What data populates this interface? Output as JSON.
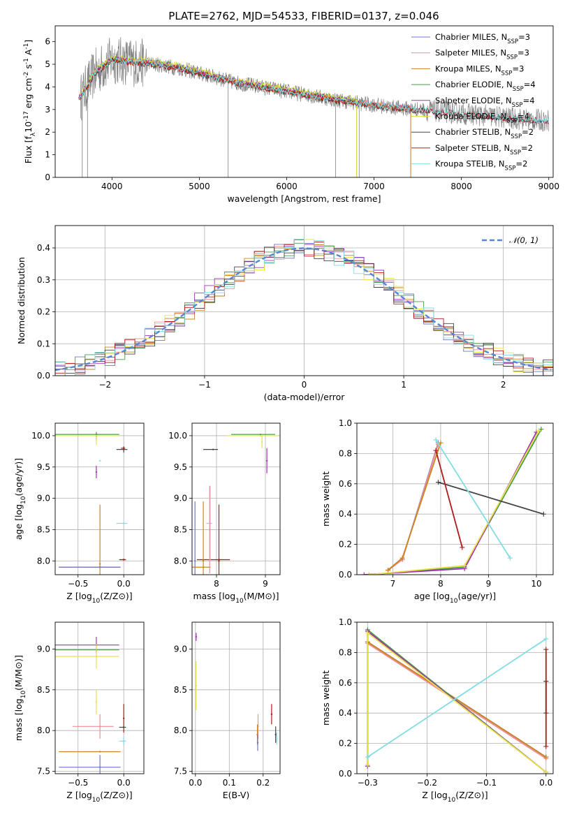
{
  "figure": {
    "title": "PLATE=2762, MJD=54533, FIBERID=0137, z=0.046"
  },
  "model_colors": [
    "#6f76c9",
    "#f28b96",
    "#c8861c",
    "#4a9b4a",
    "#a234b4",
    "#e8e24a",
    "#444444",
    "#b11a1a",
    "#82dde3"
  ],
  "chart_data": [
    {
      "id": "spectrum",
      "type": "line",
      "xlabel": "wavelength [Angstrom, rest frame]",
      "ylabel": "Flux [f_λ10^-17 erg cm^-2 s^-1 A^-1]",
      "xlim": [
        3350,
        9050
      ],
      "ylim": [
        0,
        6.7
      ],
      "xticks": [
        4000,
        5000,
        6000,
        7000,
        8000,
        9000
      ],
      "yticks": [
        0,
        1,
        2,
        3,
        4,
        5,
        6
      ],
      "grid": false,
      "legend_position": "top-right",
      "data_color": "#808080",
      "data_envelope": {
        "wavelength": [
          3640,
          3800,
          4000,
          4200,
          4500,
          4800,
          5100,
          5400,
          5700,
          6000,
          6300,
          6600,
          6900,
          7200,
          7500,
          7800,
          8200,
          8600,
          9000
        ],
        "flux": [
          3.5,
          4.6,
          5.2,
          5.1,
          5.0,
          4.8,
          4.5,
          4.2,
          4.0,
          3.8,
          3.6,
          3.4,
          3.25,
          3.1,
          3.0,
          2.9,
          2.75,
          2.6,
          2.5
        ]
      },
      "series": [
        {
          "name": "Chabrier MILES",
          "nssp": "3",
          "max_wavelength": 7420,
          "offset": 0.05
        },
        {
          "name": "Salpeter MILES",
          "nssp": "3",
          "max_wavelength": 7420,
          "offset": 0.03
        },
        {
          "name": "Kroupa MILES",
          "nssp": "3",
          "max_wavelength": 7420,
          "offset": 0.0
        },
        {
          "name": "Chabrier ELODIE",
          "nssp": "4",
          "max_wavelength": 6800,
          "offset": 0.08
        },
        {
          "name": "Salpeter ELODIE",
          "nssp": "4",
          "max_wavelength": 6800,
          "offset": 0.06
        },
        {
          "name": "Kroupa ELODIE",
          "nssp": "4",
          "max_wavelength": 6800,
          "offset": 0.12
        },
        {
          "name": "Chabrier STELIB",
          "nssp": "2",
          "max_wavelength": 9000,
          "offset": -0.04
        },
        {
          "name": "Salpeter STELIB",
          "nssp": "2",
          "max_wavelength": 9000,
          "offset": -0.02
        },
        {
          "name": "Kroupa STELIB",
          "nssp": "2",
          "max_wavelength": 9000,
          "offset": 0.0
        }
      ]
    },
    {
      "id": "residuals",
      "type": "line",
      "xlabel": "(data-model)/error",
      "ylabel": "Normed distribution",
      "xlim": [
        -2.5,
        2.5
      ],
      "ylim": [
        0,
        0.47
      ],
      "xticks": [
        -2,
        -1,
        0,
        1,
        2
      ],
      "yticks": [
        0.0,
        0.1,
        0.2,
        0.3,
        0.4
      ],
      "grid": true,
      "legend_position": "top-right",
      "legend": "𝒩(0, 1)",
      "normal_curve": {
        "mean": 0,
        "sigma": 1,
        "color": "#5b84d4"
      },
      "histogram_bin_width": 0.1,
      "histogram_noise": 0.03
    },
    {
      "id": "age-vs-Z",
      "type": "scatter",
      "xlabel": "Z [log10(Z/Z⊙)]",
      "ylabel": "age  [log10(age/yr)]",
      "xlim": [
        -0.75,
        0.22
      ],
      "ylim": [
        7.78,
        10.2
      ],
      "xticks": [
        -0.5,
        0.0
      ],
      "yticks": [
        8.0,
        8.5,
        9.0,
        9.5,
        10.0
      ],
      "grid": true,
      "error_crosses": [
        {
          "model": 6,
          "x": 0.0,
          "y": 8.02,
          "dx": 0.05,
          "dy": 0.0
        },
        {
          "model": 7,
          "x": 0.0,
          "y": 8.02,
          "dx": 0.04,
          "dy": 0.0
        },
        {
          "model": 8,
          "x": 0.0,
          "y": 8.6,
          "dx": 0.08,
          "dy": 0.0
        },
        {
          "model": 6,
          "x": 0.0,
          "y": 9.78,
          "dx": 0.08,
          "dy": 0.1
        },
        {
          "model": 7,
          "x": 0.0,
          "y": 9.8,
          "dx": 0.03,
          "dy": 0.0
        },
        {
          "model": 2,
          "x": -0.26,
          "y": 7.9,
          "dx": 0.45,
          "dy": 0.0
        },
        {
          "model": 2,
          "x": -0.26,
          "y": 7.95,
          "dx": 0.0,
          "dy": 1.9
        },
        {
          "model": 8,
          "x": -0.26,
          "y": 9.6,
          "dx": 0.0,
          "dy": 0.0
        },
        {
          "model": 4,
          "x": -0.3,
          "y": 9.42,
          "dx": 0.0,
          "dy": 0.2
        },
        {
          "model": 5,
          "x": -0.3,
          "y": 9.95,
          "dx": 0.0,
          "dy": 0.2
        },
        {
          "model": 3,
          "x": -0.3,
          "y": 10.02,
          "dx": 0.5,
          "dy": 0.08
        },
        {
          "model": 5,
          "x": -0.3,
          "y": 10.0,
          "dx": 0.5,
          "dy": 0.0
        },
        {
          "model": 0,
          "x": -0.26,
          "y": 7.9,
          "dx": 0.45,
          "dy": 0.0
        }
      ]
    },
    {
      "id": "age-vs-mass",
      "type": "scatter",
      "xlabel": "mass [log10(M/M⊙)]",
      "ylabel": "",
      "xlim": [
        7.5,
        9.3
      ],
      "ylim": [
        7.78,
        10.2
      ],
      "xticks": [
        8,
        9
      ],
      "yticks": [
        8.0,
        8.5,
        9.0,
        9.5,
        10.0
      ],
      "grid": true,
      "error_crosses": [
        {
          "model": 7,
          "x": 8.05,
          "y": 8.02,
          "dx": 0.45,
          "dy": 0.0
        },
        {
          "model": 7,
          "x": 8.05,
          "y": 8.0,
          "dx": 0.0,
          "dy": 1.8
        },
        {
          "model": 6,
          "x": 7.93,
          "y": 9.78,
          "dx": 0.2,
          "dy": 0.0
        },
        {
          "model": 2,
          "x": 7.73,
          "y": 8.0,
          "dx": 0.0,
          "dy": 1.9
        },
        {
          "model": 2,
          "x": 7.73,
          "y": 7.9,
          "dx": 0.3,
          "dy": 0.0
        },
        {
          "model": 8,
          "x": 7.87,
          "y": 8.6,
          "dx": 0.08,
          "dy": 1.2
        },
        {
          "model": 1,
          "x": 7.86,
          "y": 8.5,
          "dx": 0.0,
          "dy": 1.4
        },
        {
          "model": 0,
          "x": 7.56,
          "y": 8.0,
          "dx": 0.0,
          "dy": 1.9
        },
        {
          "model": 4,
          "x": 9.03,
          "y": 9.6,
          "dx": 0.0,
          "dy": 0.4
        },
        {
          "model": 5,
          "x": 8.93,
          "y": 9.9,
          "dx": 0.0,
          "dy": 0.2
        },
        {
          "model": 3,
          "x": 8.9,
          "y": 10.02,
          "dx": 0.6,
          "dy": 0.0
        },
        {
          "model": 5,
          "x": 8.9,
          "y": 10.0,
          "dx": 0.7,
          "dy": 0.0
        }
      ]
    },
    {
      "id": "mass-weight-vs-age",
      "type": "line",
      "xlabel": "age  [log10(age/yr)]",
      "ylabel": "mass weight",
      "xlim": [
        6.25,
        10.35
      ],
      "ylim": [
        0,
        1
      ],
      "xticks": [
        7,
        8,
        9,
        10
      ],
      "yticks": [
        0.0,
        0.2,
        0.4,
        0.6,
        0.8,
        1.0
      ],
      "grid": true,
      "series": [
        {
          "model": 0,
          "x": [
            6.9,
            7.2,
            7.95
          ],
          "y": [
            0.03,
            0.1,
            0.87
          ]
        },
        {
          "model": 1,
          "x": [
            6.9,
            7.2,
            7.95
          ],
          "y": [
            0.03,
            0.1,
            0.86
          ]
        },
        {
          "model": 2,
          "x": [
            6.9,
            7.2,
            8.0
          ],
          "y": [
            0.03,
            0.11,
            0.87
          ]
        },
        {
          "model": 3,
          "x": [
            6.5,
            8.5,
            10.1
          ],
          "y": [
            0.0,
            0.05,
            0.96
          ]
        },
        {
          "model": 4,
          "x": [
            6.4,
            8.5,
            10.0
          ],
          "y": [
            0.0,
            0.04,
            0.94
          ]
        },
        {
          "model": 5,
          "x": [
            6.5,
            8.5,
            10.05
          ],
          "y": [
            0.0,
            0.06,
            0.95
          ]
        },
        {
          "model": 6,
          "x": [
            7.95,
            10.15
          ],
          "y": [
            0.61,
            0.4
          ]
        },
        {
          "model": 7,
          "x": [
            7.9,
            8.45
          ],
          "y": [
            0.82,
            0.18
          ]
        },
        {
          "model": 8,
          "x": [
            7.9,
            9.45
          ],
          "y": [
            0.89,
            0.11
          ]
        }
      ]
    },
    {
      "id": "mass-vs-Z",
      "type": "scatter",
      "xlabel": "Z [log10(Z/Z⊙)]",
      "ylabel": "mass [log10(M/M⊙)]",
      "xlim": [
        -0.75,
        0.22
      ],
      "ylim": [
        7.47,
        9.33
      ],
      "xticks": [
        -0.5,
        0.0
      ],
      "yticks": [
        7.5,
        8.0,
        8.5,
        9.0
      ],
      "grid": true,
      "error_crosses": [
        {
          "model": 4,
          "x": -0.3,
          "y": 9.05,
          "dx": 0.5,
          "dy": 0.2
        },
        {
          "model": 3,
          "x": -0.3,
          "y": 8.99,
          "dx": 0.5,
          "dy": 0.0
        },
        {
          "model": 5,
          "x": -0.3,
          "y": 8.91,
          "dx": 0.5,
          "dy": 0.3
        },
        {
          "model": 5,
          "x": -0.3,
          "y": 8.35,
          "dx": 0.0,
          "dy": 0.3
        },
        {
          "model": 7,
          "x": 0.0,
          "y": 8.15,
          "dx": 0.0,
          "dy": 0.35
        },
        {
          "model": 6,
          "x": 0.0,
          "y": 8.04,
          "dx": 0.05,
          "dy": 0.0
        },
        {
          "model": 8,
          "x": 0.0,
          "y": 7.87,
          "dx": 0.05,
          "dy": 0.1
        },
        {
          "model": 1,
          "x": -0.26,
          "y": 8.05,
          "dx": 0.3,
          "dy": 0.3
        },
        {
          "model": 2,
          "x": -0.26,
          "y": 7.74,
          "dx": 0.45,
          "dy": 0.0
        },
        {
          "model": 0,
          "x": -0.26,
          "y": 7.55,
          "dx": 0.45,
          "dy": 0.3
        }
      ]
    },
    {
      "id": "mass-vs-ebv",
      "type": "scatter",
      "xlabel": "E(B-V)",
      "ylabel": "",
      "xlim": [
        -0.01,
        0.25
      ],
      "ylim": [
        7.47,
        9.33
      ],
      "xticks": [
        0.0,
        0.1,
        0.2
      ],
      "yticks": [
        7.5,
        8.0,
        8.5,
        9.0
      ],
      "grid": true,
      "error_crosses": [
        {
          "model": 4,
          "x": 0.002,
          "y": 9.15,
          "dx": 0.0,
          "dy": 0.1
        },
        {
          "model": 5,
          "x": 0.002,
          "y": 8.55,
          "dx": 0.0,
          "dy": 0.6
        },
        {
          "model": 1,
          "x": 0.185,
          "y": 8.05,
          "dx": 0.0,
          "dy": 0.3
        },
        {
          "model": 2,
          "x": 0.183,
          "y": 7.95,
          "dx": 0.0,
          "dy": 0.25
        },
        {
          "model": 0,
          "x": 0.184,
          "y": 7.85,
          "dx": 0.0,
          "dy": 0.2
        },
        {
          "model": 7,
          "x": 0.225,
          "y": 8.2,
          "dx": 0.0,
          "dy": 0.25
        },
        {
          "model": 6,
          "x": 0.237,
          "y": 7.95,
          "dx": 0.0,
          "dy": 0.2
        },
        {
          "model": 8,
          "x": 0.24,
          "y": 7.9,
          "dx": 0.0,
          "dy": 0.15
        }
      ]
    },
    {
      "id": "mass-weight-vs-Z",
      "type": "line",
      "xlabel": "Z [log10(Z/Z⊙)]",
      "ylabel": "mass weight",
      "xlim": [
        -0.318,
        0.012
      ],
      "ylim": [
        0,
        1
      ],
      "xticks": [
        -0.3,
        -0.2,
        -0.1,
        0.0
      ],
      "yticks": [
        0.0,
        0.2,
        0.4,
        0.6,
        0.8,
        1.0
      ],
      "grid": true,
      "series": [
        {
          "model": 0,
          "x": [
            -0.3,
            0.0
          ],
          "y": [
            0.87,
            0.11
          ]
        },
        {
          "model": 1,
          "x": [
            -0.3,
            0.0
          ],
          "y": [
            0.86,
            0.1
          ]
        },
        {
          "model": 2,
          "x": [
            -0.3,
            0.0
          ],
          "y": [
            0.87,
            0.11
          ]
        },
        {
          "model": 3,
          "x": [
            -0.3,
            -0.3,
            0.0
          ],
          "y": [
            0.05,
            0.95,
            0.01
          ]
        },
        {
          "model": 4,
          "x": [
            -0.3,
            -0.3,
            0.0
          ],
          "y": [
            0.05,
            0.94,
            0.01
          ]
        },
        {
          "model": 5,
          "x": [
            -0.3,
            -0.3,
            0.0
          ],
          "y": [
            0.06,
            0.93,
            0.01
          ]
        },
        {
          "model": 6,
          "x": [
            0.0,
            0.0
          ],
          "y": [
            0.4,
            0.61
          ]
        },
        {
          "model": 7,
          "x": [
            0.0,
            0.0
          ],
          "y": [
            0.18,
            0.82
          ]
        },
        {
          "model": 8,
          "x": [
            -0.3,
            0.0
          ],
          "y": [
            0.11,
            0.89
          ]
        }
      ]
    }
  ]
}
